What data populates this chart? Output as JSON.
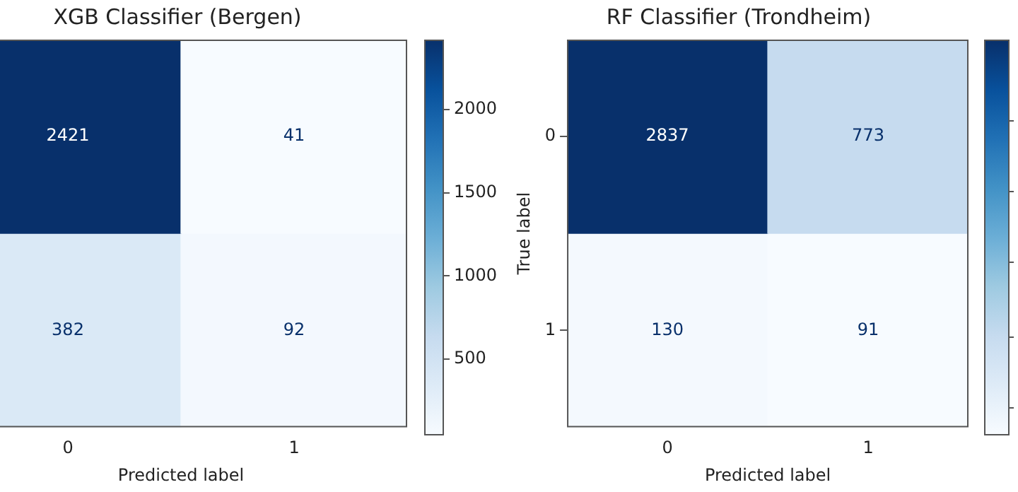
{
  "chart_data": [
    {
      "type": "heatmap",
      "title": "XGB Classifier (Bergen)",
      "xlabel": "Predicted label",
      "categories": [
        "0",
        "1"
      ],
      "y_categories": [
        null,
        null
      ],
      "tick_labels": "x",
      "cells": [
        [
          2421,
          41
        ],
        [
          382,
          92
        ]
      ],
      "data_labels": true,
      "clim": [
        41,
        2421
      ],
      "cticks": [
        500,
        1000,
        1500,
        2000
      ],
      "grid": false
    },
    {
      "type": "heatmap",
      "title": "RF Classifier (Trondheim)",
      "xlabel": "Predicted label",
      "ylabel": "True label",
      "categories": [
        "0",
        "1"
      ],
      "y_categories": [
        "0",
        "1"
      ],
      "cells": [
        [
          2837,
          773
        ],
        [
          130,
          91
        ]
      ],
      "data_labels": true,
      "grid": false
    }
  ]
}
